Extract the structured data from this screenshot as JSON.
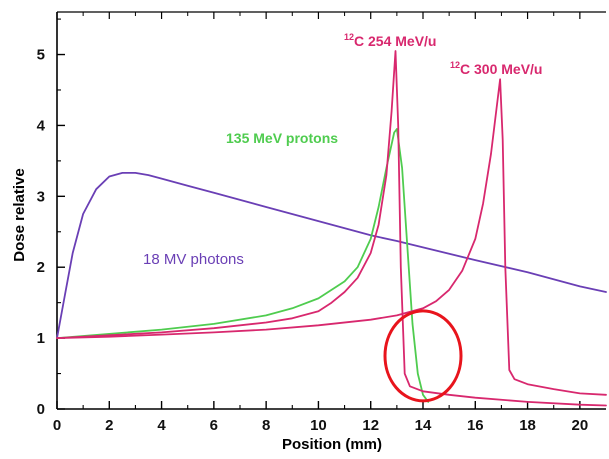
{
  "chart_data": {
    "type": "line",
    "xlabel": "Position (mm)",
    "ylabel": "Dose relative",
    "xlim": [
      0,
      21
    ],
    "ylim": [
      0,
      5.6
    ],
    "x_ticks": [
      0,
      2,
      4,
      6,
      8,
      10,
      12,
      14,
      16,
      18,
      20
    ],
    "y_ticks": [
      0,
      1,
      2,
      3,
      4,
      5
    ],
    "series": [
      {
        "name": "18 MV photons",
        "color": "#6a3fb5",
        "x": [
          0,
          0.3,
          0.6,
          1.0,
          1.5,
          2.0,
          2.5,
          3.0,
          3.5,
          4.0,
          5.0,
          6.0,
          8.0,
          10.0,
          12.0,
          13.0,
          14.0,
          16.0,
          18.0,
          20.0,
          21.0
        ],
        "y": [
          1.0,
          1.6,
          2.2,
          2.75,
          3.1,
          3.28,
          3.33,
          3.33,
          3.3,
          3.25,
          3.15,
          3.05,
          2.85,
          2.65,
          2.45,
          2.37,
          2.28,
          2.1,
          1.93,
          1.73,
          1.65
        ]
      },
      {
        "name": "135 MeV protons",
        "color": "#4fcc4f",
        "x": [
          0,
          2,
          4,
          6,
          8,
          9,
          10,
          11,
          11.5,
          12.0,
          12.3,
          12.6,
          12.9,
          13.0,
          13.2,
          13.4,
          13.6,
          13.8,
          14.0,
          14.2
        ],
        "y": [
          1.0,
          1.06,
          1.12,
          1.2,
          1.32,
          1.42,
          1.56,
          1.8,
          2.0,
          2.4,
          2.85,
          3.4,
          3.9,
          3.95,
          3.4,
          2.3,
          1.2,
          0.5,
          0.2,
          0.1
        ]
      },
      {
        "name": "12C 254 MeV/u",
        "color": "#d8286e",
        "x": [
          0,
          2,
          4,
          6,
          8,
          9,
          10,
          10.5,
          11,
          11.5,
          12.0,
          12.3,
          12.6,
          12.8,
          12.95,
          13.05,
          13.15,
          13.3,
          13.5,
          14.0,
          15.0,
          16.0,
          18.0,
          20.0,
          21.0
        ],
        "y": [
          1.0,
          1.04,
          1.08,
          1.14,
          1.22,
          1.28,
          1.38,
          1.5,
          1.65,
          1.85,
          2.2,
          2.6,
          3.3,
          4.2,
          5.05,
          4.0,
          2.0,
          0.5,
          0.32,
          0.25,
          0.2,
          0.16,
          0.1,
          0.06,
          0.05
        ]
      },
      {
        "name": "12C 300 MeV/u",
        "color": "#d8286e",
        "x": [
          0,
          2,
          4,
          6,
          8,
          10,
          12,
          13.0,
          14.0,
          14.5,
          15.0,
          15.5,
          16.0,
          16.3,
          16.6,
          16.8,
          16.95,
          17.05,
          17.15,
          17.3,
          17.5,
          18.0,
          19.0,
          20.0,
          21.0
        ],
        "y": [
          1.0,
          1.02,
          1.05,
          1.08,
          1.12,
          1.18,
          1.26,
          1.32,
          1.42,
          1.52,
          1.68,
          1.95,
          2.4,
          2.9,
          3.6,
          4.2,
          4.65,
          3.8,
          2.0,
          0.55,
          0.42,
          0.35,
          0.28,
          0.22,
          0.2
        ]
      }
    ],
    "annotations": {
      "photons": "18  MV  photons",
      "protons": "135 MeV protons",
      "c254_sup": "12",
      "c254_text": "C 254 MeV/u",
      "c300_sup": "12",
      "c300_text": "C 300 MeV/u"
    },
    "highlight": {
      "shape": "ellipse",
      "color": "#e8141c",
      "center": [
        14.0,
        0.75
      ]
    },
    "grid": false
  }
}
